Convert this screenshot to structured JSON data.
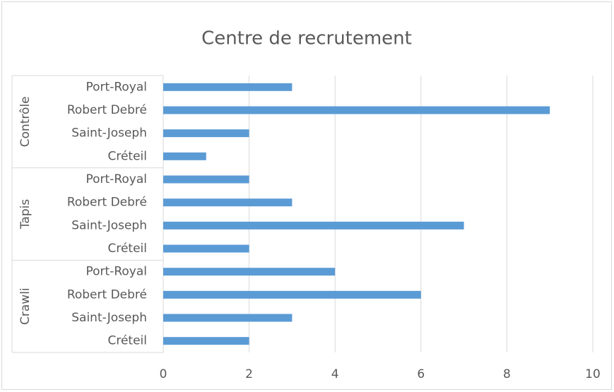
{
  "chart_data": {
    "type": "bar",
    "orientation": "horizontal",
    "title": "Centre de recrutement",
    "groups": [
      {
        "name": "Contrôle",
        "categories": [
          "Port-Royal",
          "Robert Debré",
          "Saint-Joseph",
          "Créteil"
        ],
        "values": [
          3,
          9,
          2,
          1
        ]
      },
      {
        "name": "Tapis",
        "categories": [
          "Port-Royal",
          "Robert Debré",
          "Saint-Joseph",
          "Créteil"
        ],
        "values": [
          2,
          3,
          7,
          2
        ]
      },
      {
        "name": "Crawli",
        "categories": [
          "Port-Royal",
          "Robert Debré",
          "Saint-Joseph",
          "Créteil"
        ],
        "values": [
          4,
          6,
          3,
          2
        ]
      }
    ],
    "color": "#5b9bd5",
    "xlim": [
      0,
      10
    ],
    "xticks": [
      0,
      2,
      4,
      6,
      8,
      10
    ],
    "grid": true
  }
}
